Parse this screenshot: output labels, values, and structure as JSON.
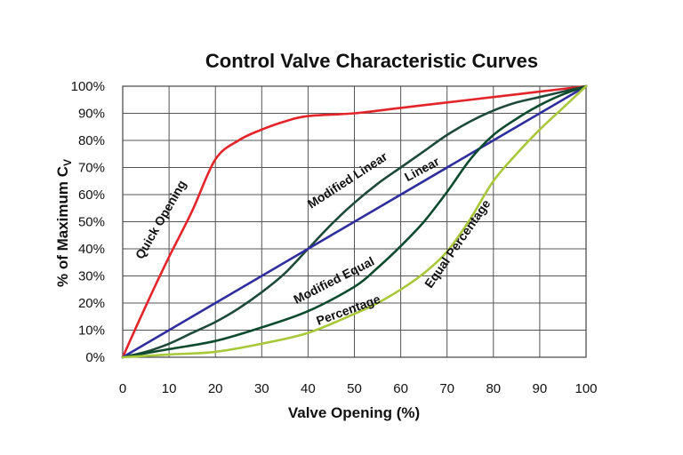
{
  "chart_data": {
    "type": "line",
    "title": "Control Valve Characteristic Curves",
    "xlabel": "Valve Opening (%)",
    "ylabel": "% of Maximum C",
    "ylabel_subscript": "V",
    "xlim": [
      0,
      100
    ],
    "ylim": [
      0,
      100
    ],
    "x_ticks": [
      0,
      10,
      20,
      30,
      40,
      50,
      60,
      70,
      80,
      90,
      100
    ],
    "y_ticks": [
      0,
      10,
      20,
      30,
      40,
      50,
      60,
      70,
      80,
      90,
      100
    ],
    "x_tick_labels": [
      "0",
      "10",
      "20",
      "30",
      "40",
      "50",
      "60",
      "70",
      "80",
      "90",
      "100"
    ],
    "y_tick_labels": [
      "0%",
      "10%",
      "20%",
      "30%",
      "40%",
      "50%",
      "60%",
      "70%",
      "80%",
      "90%",
      "100%"
    ],
    "grid": true,
    "series": [
      {
        "name": "Quick Opening",
        "color": "#e3242b",
        "x": [
          0,
          5,
          10,
          15,
          20,
          25,
          30,
          35,
          40,
          50,
          60,
          70,
          80,
          90,
          100
        ],
        "y": [
          0,
          19,
          37,
          54,
          73,
          80,
          84,
          87,
          89,
          90,
          92,
          94,
          96,
          98,
          100
        ]
      },
      {
        "name": "Modified Linear",
        "color": "#1f4a3a",
        "x": [
          0,
          5,
          10,
          15,
          20,
          25,
          30,
          35,
          40,
          45,
          50,
          55,
          60,
          65,
          70,
          75,
          80,
          85,
          90,
          95,
          100
        ],
        "y": [
          0,
          2,
          5,
          9,
          13,
          18,
          24,
          31,
          40,
          49,
          57,
          64,
          70,
          76,
          82,
          87,
          91,
          94,
          96,
          98,
          100
        ]
      },
      {
        "name": "Linear",
        "color": "#2e2e9e",
        "x": [
          0,
          100
        ],
        "y": [
          0,
          100
        ]
      },
      {
        "name": "Modified Equal Percentage",
        "color": "#0d4a2e",
        "x": [
          0,
          10,
          20,
          30,
          40,
          50,
          55,
          60,
          65,
          70,
          75,
          80,
          85,
          90,
          95,
          100
        ],
        "y": [
          0,
          3,
          6,
          11,
          17,
          26,
          33,
          41,
          50,
          61,
          73,
          82,
          88,
          93,
          97,
          100
        ]
      },
      {
        "name": "Equal Percentage",
        "color": "#a8c83a",
        "x": [
          0,
          10,
          20,
          30,
          40,
          50,
          55,
          60,
          65,
          70,
          75,
          80,
          85,
          90,
          95,
          100
        ],
        "y": [
          0,
          1,
          2,
          5,
          9,
          16,
          20,
          25,
          31,
          39,
          51,
          65,
          75,
          84,
          92,
          100
        ]
      }
    ],
    "annotations": [
      {
        "text": "Quick Opening",
        "x": 9,
        "y": 50,
        "angle": -60
      },
      {
        "text": "Modified Linear",
        "x": 49,
        "y": 64,
        "angle": -33
      },
      {
        "text": "Linear",
        "x": 65,
        "y": 68,
        "angle": -28
      },
      {
        "text": "Modified Equal",
        "x": 46,
        "y": 27,
        "angle": -27
      },
      {
        "text": "Percentage",
        "x": 49,
        "y": 16,
        "angle": -20
      },
      {
        "text": "Equal Percentage",
        "x": 73,
        "y": 41,
        "angle": -55
      }
    ]
  }
}
